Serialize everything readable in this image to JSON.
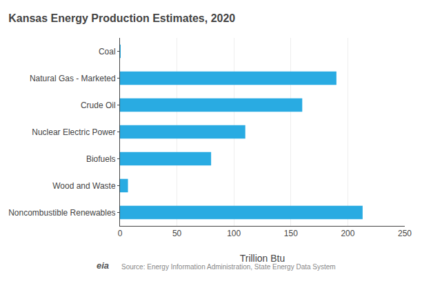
{
  "chart_data": {
    "type": "bar",
    "orientation": "horizontal",
    "title": "Kansas Energy Production Estimates, 2020",
    "categories": [
      "Coal",
      "Natural Gas - Marketed",
      "Crude Oil",
      "Nuclear Electric Power",
      "Biofuels",
      "Wood and Waste",
      "Noncombustible Renewables"
    ],
    "values": [
      0.5,
      190,
      160,
      110,
      80,
      7,
      213
    ],
    "color": "#29ABE2",
    "xlabel": "Trillion Btu",
    "xlim": [
      0,
      250
    ],
    "xticks": [
      0,
      50,
      100,
      150,
      200,
      250
    ],
    "grid": true,
    "annotations": [
      "Source: Energy Information Administration, State Energy Data System",
      "eia"
    ]
  }
}
